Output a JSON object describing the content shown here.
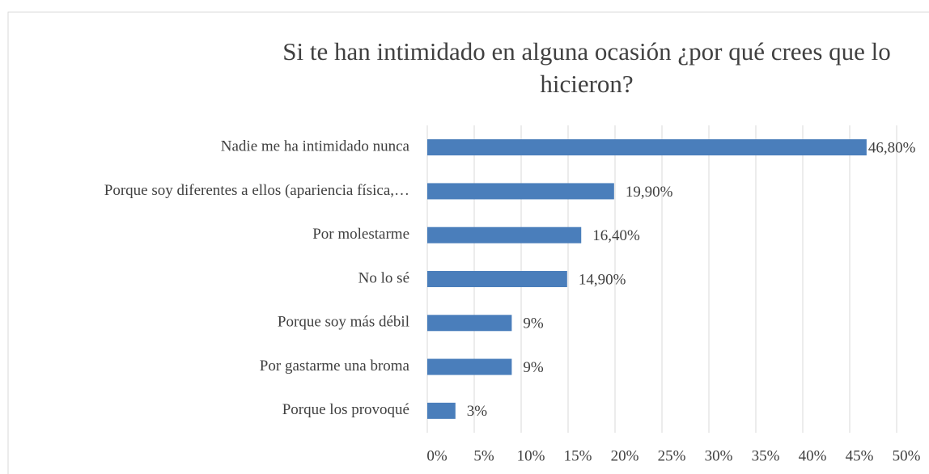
{
  "chart_data": {
    "type": "bar",
    "orientation": "horizontal",
    "title": "Si te han intimidado en alguna ocasión ¿por qué crees que lo hicieron?",
    "categories": [
      "Nadie me ha intimidado nunca",
      "Porque soy diferentes a ellos (apariencia física,…",
      "Por molestarme",
      "No lo sé",
      "Porque soy más débil",
      "Por gastarme una broma",
      "Porque los provoqué"
    ],
    "values": [
      46.8,
      19.9,
      16.4,
      14.9,
      9,
      9,
      3
    ],
    "value_labels": [
      "46,80%",
      "19,90%",
      "16,40%",
      "14,90%",
      "9%",
      "9%",
      "3%"
    ],
    "color": "#4a7ebb",
    "xlim": [
      0,
      50
    ],
    "xticks": [
      {
        "value": 0,
        "label": "0%"
      },
      {
        "value": 5,
        "label": "5%"
      },
      {
        "value": 10,
        "label": "10%"
      },
      {
        "value": 15,
        "label": "15%"
      },
      {
        "value": 20,
        "label": "20%"
      },
      {
        "value": 25,
        "label": "25%"
      },
      {
        "value": 30,
        "label": "30%"
      },
      {
        "value": 35,
        "label": "35%"
      },
      {
        "value": 40,
        "label": "40%"
      },
      {
        "value": 45,
        "label": "45%"
      },
      {
        "value": 50,
        "label": "50%"
      }
    ],
    "grid": true
  }
}
